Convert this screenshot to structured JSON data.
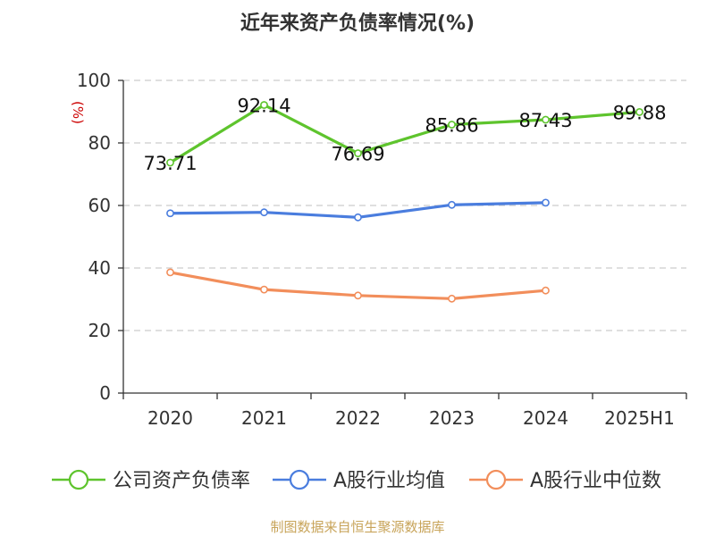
{
  "source_text": "制图数据来自恒生聚源数据库",
  "colors": {
    "company": "#5ec42d",
    "industry_avg": "#4a7dde",
    "industry_median": "#f28e5b",
    "grid": "#cccccc",
    "axis": "#333333"
  },
  "chart_data": {
    "type": "line",
    "title": "近年来资产负债率情况(%)",
    "ylabel": "(%)",
    "xlabel": "",
    "categories": [
      "2020",
      "2021",
      "2022",
      "2023",
      "2024",
      "2025H1"
    ],
    "ylim": [
      0,
      100
    ],
    "yticks": [
      0,
      20,
      40,
      60,
      80,
      100
    ],
    "grid": true,
    "legend_position": "bottom",
    "series": [
      {
        "name": "公司资产负债率",
        "values": [
          73.71,
          92.14,
          76.69,
          85.86,
          87.43,
          89.88
        ],
        "labels": [
          "73.71",
          "92.14",
          "76.69",
          "85.86",
          "87.43",
          "89.88"
        ]
      },
      {
        "name": "A股行业均值",
        "values": [
          57.5,
          57.8,
          56.2,
          60.2,
          60.9,
          null
        ]
      },
      {
        "name": "A股行业中位数",
        "values": [
          38.6,
          33.1,
          31.2,
          30.2,
          32.8,
          null
        ]
      }
    ]
  }
}
